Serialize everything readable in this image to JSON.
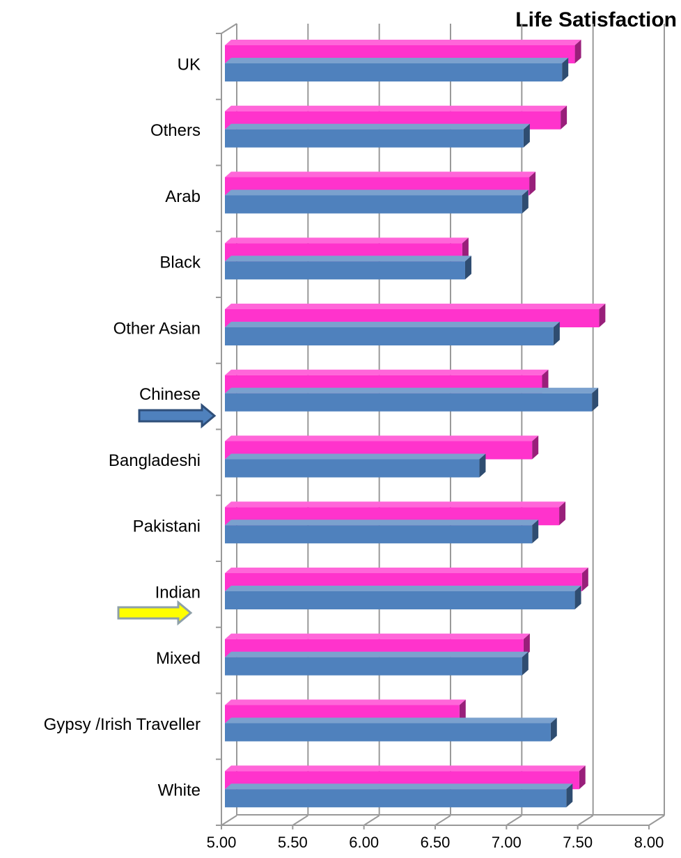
{
  "chart_data": {
    "type": "bar",
    "orientation": "horizontal",
    "title": "Life Satisfaction",
    "categories": [
      "UK",
      "Others",
      "Arab",
      "Black",
      "Other Asian",
      "Chinese",
      "Bangladeshi",
      "Pakistani",
      "Indian",
      "Mixed",
      "Gypsy /Irish Traveller",
      "White"
    ],
    "series": [
      {
        "color": "#ff33cc",
        "values": [
          7.48,
          7.38,
          7.16,
          6.69,
          7.65,
          7.25,
          7.18,
          7.37,
          7.53,
          7.12,
          6.67,
          7.51
        ]
      },
      {
        "color": "#4f81bd",
        "values": [
          7.39,
          7.12,
          7.11,
          6.71,
          7.33,
          7.6,
          6.81,
          7.18,
          7.48,
          7.11,
          7.31,
          7.42
        ]
      }
    ],
    "xlim": [
      5,
      8
    ],
    "xticks": [
      {
        "value": 5,
        "label": "5.00"
      },
      {
        "value": 5.5,
        "label": "5.50"
      },
      {
        "value": 6,
        "label": "6.00"
      },
      {
        "value": 6.5,
        "label": "6.50"
      },
      {
        "value": 7,
        "label": "7.00"
      },
      {
        "value": 7.5,
        "label": "7.50"
      },
      {
        "value": 8,
        "label": "8.00"
      }
    ],
    "grid": true
  }
}
